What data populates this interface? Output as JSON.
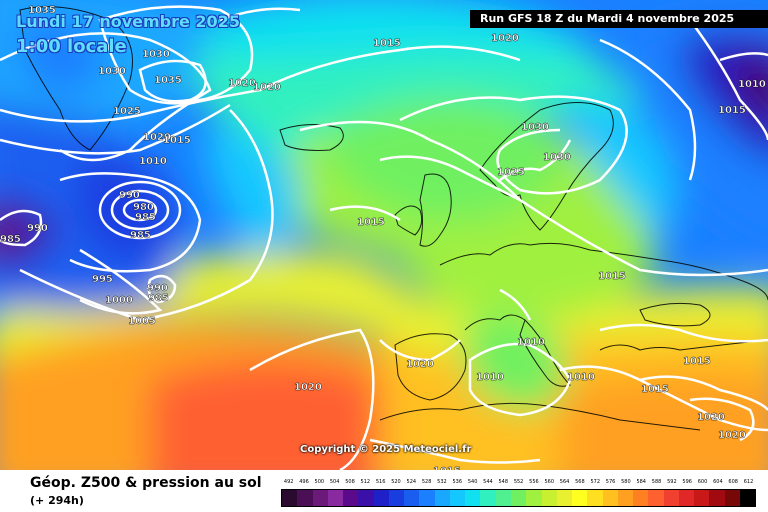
{
  "header": {
    "date": "Lundi 17 novembre 2025",
    "time": "1:00 locale",
    "run": "Run GFS 18 Z du Mardi 4 novembre 2025"
  },
  "copyright": "Copyright © 2025 Meteociel.fr",
  "footer": {
    "title": "Géop. Z500 & pression au sol",
    "subtitle": "(+ 294h)"
  },
  "legend": {
    "values": [
      "492",
      "496",
      "500",
      "504",
      "508",
      "512",
      "516",
      "520",
      "524",
      "528",
      "532",
      "536",
      "540",
      "544",
      "548",
      "552",
      "556",
      "560",
      "564",
      "568",
      "572",
      "576",
      "580",
      "584",
      "588",
      "592",
      "596",
      "600",
      "604",
      "608",
      "612"
    ],
    "colors": [
      "#2a0a2e",
      "#4a0f54",
      "#6b1a7a",
      "#8a2aa0",
      "#5a0a8a",
      "#3a10a8",
      "#2020c8",
      "#1a3de0",
      "#1a5ef0",
      "#1a80ff",
      "#1aa8ff",
      "#14c8ff",
      "#10e0f0",
      "#30f0c0",
      "#50f090",
      "#70f060",
      "#a0f040",
      "#c8f030",
      "#e8f030",
      "#ffff20",
      "#ffe020",
      "#ffc020",
      "#ffa020",
      "#ff8020",
      "#ff6030",
      "#f04030",
      "#e02828",
      "#c81818",
      "#a00a10",
      "#780808",
      "#000000"
    ]
  },
  "pressure_labels": [
    {
      "text": "1035"
    },
    {
      "text": "1030"
    },
    {
      "text": "1030"
    },
    {
      "text": "1035"
    },
    {
      "text": "1020"
    },
    {
      "text": "1020"
    },
    {
      "text": "1025"
    },
    {
      "text": "1020"
    },
    {
      "text": "1015"
    },
    {
      "text": "1010"
    },
    {
      "text": "990"
    },
    {
      "text": "980"
    },
    {
      "text": "985"
    },
    {
      "text": "990"
    },
    {
      "text": "985"
    },
    {
      "text": "985"
    },
    {
      "text": "995"
    },
    {
      "text": "990"
    },
    {
      "text": "985"
    },
    {
      "text": "1000"
    },
    {
      "text": "1005"
    },
    {
      "text": "1015"
    },
    {
      "text": "1030"
    },
    {
      "text": "1030"
    },
    {
      "text": "1025"
    },
    {
      "text": "1015"
    },
    {
      "text": "1015"
    },
    {
      "text": "1010"
    },
    {
      "text": "1010"
    },
    {
      "text": "1010"
    },
    {
      "text": "1020"
    },
    {
      "text": "1020"
    },
    {
      "text": "1015"
    },
    {
      "text": "1015"
    },
    {
      "text": "1020"
    },
    {
      "text": "1020"
    },
    {
      "text": "1015"
    },
    {
      "text": "1010"
    },
    {
      "text": "1015"
    },
    {
      "text": "1020"
    }
  ]
}
